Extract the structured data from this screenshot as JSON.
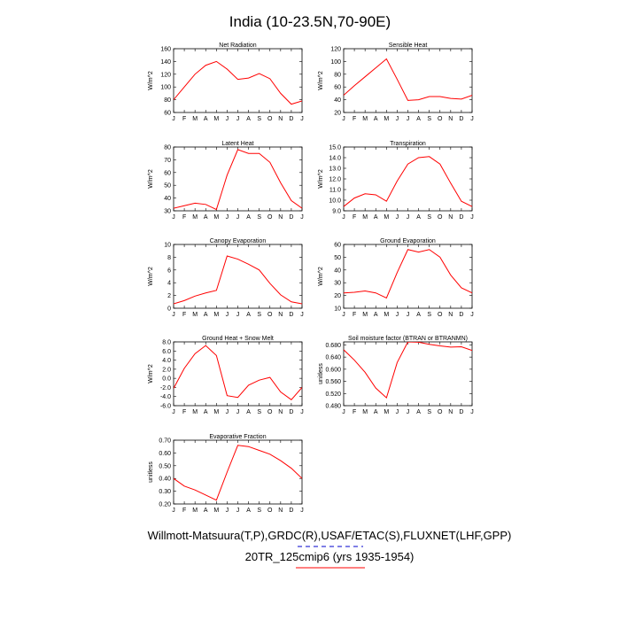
{
  "title": "India (10-23.5N,70-90E)",
  "colors": {
    "model_line": "#ff0000",
    "frame": "#000000",
    "footer_obs_rule": "#0000cc",
    "footer_model_rule": "#ff0000"
  },
  "footer": {
    "line1": "Willmott-Matsuura(T,P),GRDC(R),USAF/ETAC(S),FLUXNET(LHF,GPP)",
    "line2": "20TR_125cmip6 (yrs 1935-1954)"
  },
  "chart_data": [
    {
      "type": "line",
      "title": "Net Radiation",
      "ylabel": "W/m^2",
      "categories": [
        "J",
        "F",
        "M",
        "A",
        "M",
        "J",
        "J",
        "A",
        "S",
        "O",
        "N",
        "D",
        "J"
      ],
      "values": [
        80,
        100,
        120,
        134,
        140,
        128,
        112,
        114,
        121,
        113,
        90,
        73,
        78
      ],
      "ylim": [
        60,
        160
      ],
      "yticks": [
        "60",
        "80",
        "100",
        "120",
        "140",
        "160"
      ]
    },
    {
      "type": "line",
      "title": "Sensible Heat",
      "ylabel": "W/m^2",
      "categories": [
        "J",
        "F",
        "M",
        "A",
        "M",
        "J",
        "J",
        "A",
        "S",
        "O",
        "N",
        "D",
        "J"
      ],
      "values": [
        47,
        62,
        76,
        90,
        104,
        72,
        39,
        40,
        45,
        45,
        42,
        41,
        47
      ],
      "ylim": [
        20,
        120
      ],
      "yticks": [
        "20",
        "40",
        "60",
        "80",
        "100",
        "120"
      ]
    },
    {
      "type": "line",
      "title": "Latent Heat",
      "ylabel": "W/m^2",
      "categories": [
        "J",
        "F",
        "M",
        "A",
        "M",
        "J",
        "J",
        "A",
        "S",
        "O",
        "N",
        "D",
        "J"
      ],
      "values": [
        32,
        34,
        36,
        35,
        31,
        58,
        78,
        75,
        75,
        68,
        52,
        38,
        32
      ],
      "ylim": [
        30,
        80
      ],
      "yticks": [
        "30",
        "40",
        "50",
        "60",
        "70",
        "80"
      ]
    },
    {
      "type": "line",
      "title": "Transpiration",
      "ylabel": "W/m^2",
      "categories": [
        "J",
        "F",
        "M",
        "A",
        "M",
        "J",
        "J",
        "A",
        "S",
        "O",
        "N",
        "D",
        "J"
      ],
      "values": [
        9.4,
        10.2,
        10.6,
        10.5,
        9.9,
        11.8,
        13.4,
        14.0,
        14.1,
        13.4,
        11.6,
        9.9,
        9.4
      ],
      "ylim": [
        9.0,
        15.0
      ],
      "yticks": [
        "9.0",
        "10.0",
        "11.0",
        "12.0",
        "13.0",
        "14.0",
        "15.0"
      ]
    },
    {
      "type": "line",
      "title": "Canopy Evaporation",
      "ylabel": "W/m^2",
      "categories": [
        "J",
        "F",
        "M",
        "A",
        "M",
        "J",
        "J",
        "A",
        "S",
        "O",
        "N",
        "D",
        "J"
      ],
      "values": [
        0.7,
        1.2,
        1.9,
        2.4,
        2.8,
        8.2,
        7.7,
        6.9,
        6.0,
        3.9,
        2.1,
        1.0,
        0.7
      ],
      "ylim": [
        0,
        10
      ],
      "yticks": [
        "0",
        "2",
        "4",
        "6",
        "8",
        "10"
      ]
    },
    {
      "type": "line",
      "title": "Ground Evaporation",
      "ylabel": "W/m^2",
      "categories": [
        "J",
        "F",
        "M",
        "A",
        "M",
        "J",
        "J",
        "A",
        "S",
        "O",
        "N",
        "D",
        "J"
      ],
      "values": [
        22,
        22.5,
        23.5,
        22,
        18,
        38,
        56,
        54,
        56,
        50,
        36,
        26,
        22
      ],
      "ylim": [
        10,
        60
      ],
      "yticks": [
        "10",
        "20",
        "30",
        "40",
        "50",
        "60"
      ]
    },
    {
      "type": "line",
      "title": "Ground Heat + Snow Melt",
      "ylabel": "W/m^2",
      "categories": [
        "J",
        "F",
        "M",
        "A",
        "M",
        "J",
        "J",
        "A",
        "S",
        "O",
        "N",
        "D",
        "J"
      ],
      "values": [
        -2.2,
        2.2,
        5.4,
        7.2,
        5.0,
        -3.8,
        -4.2,
        -1.5,
        -0.4,
        0.2,
        -3.0,
        -4.7,
        -2.0
      ],
      "ylim": [
        -6.0,
        8.0
      ],
      "yticks": [
        "-6.0",
        "-4.0",
        "-2.0",
        "0.0",
        "2.0",
        "4.0",
        "6.0",
        "8.0"
      ]
    },
    {
      "type": "line",
      "title": "Soil moisture factor (BTRAN or BTRANMN)",
      "ylabel": "unitless",
      "categories": [
        "J",
        "F",
        "M",
        "A",
        "M",
        "J",
        "J",
        "A",
        "S",
        "O",
        "N",
        "D",
        "J"
      ],
      "values": [
        0.664,
        0.63,
        0.59,
        0.538,
        0.506,
        0.622,
        0.69,
        0.689,
        0.682,
        0.677,
        0.673,
        0.674,
        0.662
      ],
      "ylim": [
        0.48,
        0.69
      ],
      "yticks": [
        "0.480",
        "0.520",
        "0.560",
        "0.600",
        "0.640",
        "0.680"
      ]
    },
    {
      "type": "line",
      "title": "Evaporative Fraction",
      "ylabel": "unitless",
      "categories": [
        "J",
        "F",
        "M",
        "A",
        "M",
        "J",
        "J",
        "A",
        "S",
        "O",
        "N",
        "D",
        "J"
      ],
      "values": [
        0.4,
        0.34,
        0.31,
        0.27,
        0.23,
        0.45,
        0.66,
        0.65,
        0.62,
        0.59,
        0.54,
        0.48,
        0.4
      ],
      "ylim": [
        0.2,
        0.7
      ],
      "yticks": [
        "0.20",
        "0.30",
        "0.40",
        "0.50",
        "0.60",
        "0.70"
      ]
    }
  ]
}
